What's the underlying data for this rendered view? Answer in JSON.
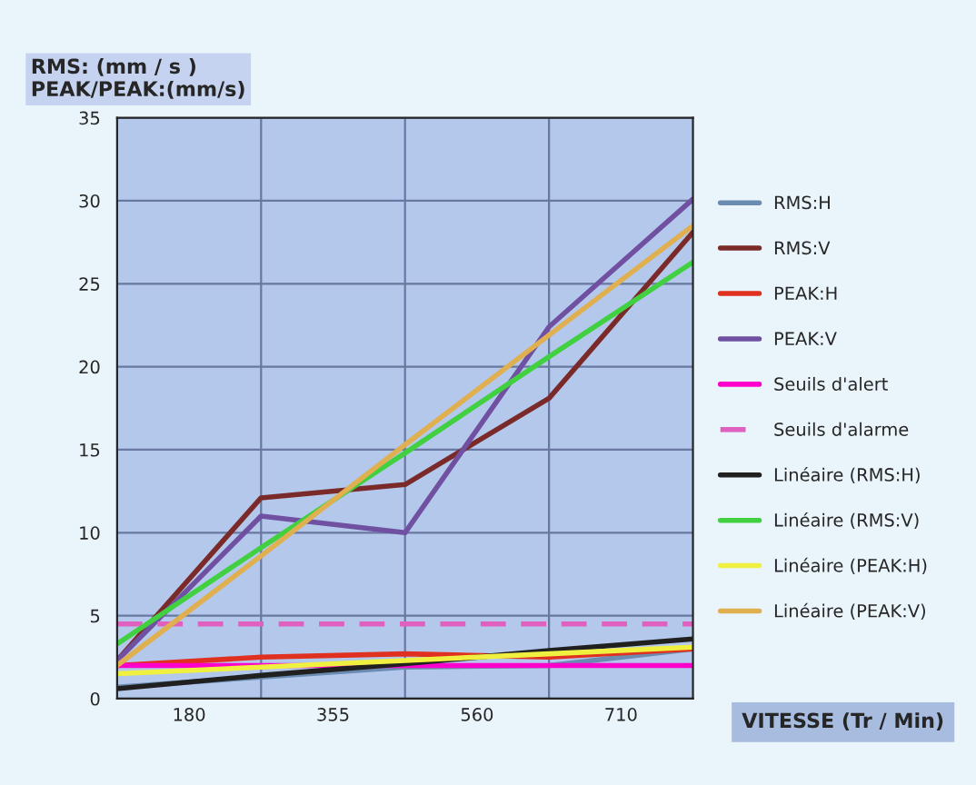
{
  "chart_data": {
    "type": "line",
    "ylabel": "RMS: (mm / s )\nPEAK/PEAK:(mm/s)",
    "xlabel": "VITESSE (Tr / Min)",
    "categories": [
      null,
      "180",
      null,
      "355",
      null,
      "560",
      null,
      "710",
      null
    ],
    "ylim": [
      0,
      35
    ],
    "yticks": [
      0,
      5,
      10,
      15,
      20,
      25,
      30,
      35
    ],
    "grid": true,
    "legend": "right",
    "marker": "none",
    "line_style": "solid",
    "series": [
      {
        "name": "RMS:H",
        "color": "#6a8cb0",
        "values": [
          0.7,
          null,
          1.3,
          null,
          1.9,
          null,
          2.0,
          null,
          3.0
        ]
      },
      {
        "name": "RMS:V",
        "color": "#7b2a2a",
        "values": [
          2.3,
          null,
          12.1,
          null,
          12.9,
          null,
          18.1,
          null,
          28.1
        ]
      },
      {
        "name": "PEAK:H",
        "color": "#e03020",
        "values": [
          2.0,
          null,
          2.5,
          null,
          2.7,
          null,
          2.5,
          null,
          3.0
        ]
      },
      {
        "name": "PEAK:V",
        "color": "#7050a0",
        "values": [
          2.3,
          null,
          11.0,
          null,
          10.0,
          null,
          22.4,
          null,
          30.1
        ]
      },
      {
        "name": "Seuils d'alert",
        "color": "#ff00cc",
        "values": [
          2.0,
          null,
          2.0,
          null,
          2.0,
          null,
          2.0,
          null,
          2.0
        ]
      },
      {
        "name": "Seuils d'alarme",
        "color": "#e060c0",
        "line_style": "dashed",
        "values": [
          4.5,
          null,
          4.5,
          null,
          4.5,
          null,
          4.5,
          null,
          4.5
        ]
      },
      {
        "name": "Linéaire (RMS:H)",
        "color": "#202020",
        "values": [
          0.6,
          null,
          1.4,
          null,
          2.1,
          null,
          2.9,
          null,
          3.6
        ]
      },
      {
        "name": "Linéaire (RMS:V)",
        "color": "#40d040",
        "values": [
          3.3,
          null,
          9.1,
          null,
          14.8,
          null,
          20.6,
          null,
          26.3
        ]
      },
      {
        "name": "Linéaire (PEAK:H)",
        "color": "#f0f040",
        "values": [
          1.5,
          null,
          1.9,
          null,
          2.3,
          null,
          2.7,
          null,
          3.1
        ]
      },
      {
        "name": "Linéaire (PEAK:V)",
        "color": "#e0b050",
        "values": [
          2.0,
          null,
          8.6,
          null,
          15.3,
          null,
          21.9,
          null,
          28.5
        ]
      }
    ]
  }
}
